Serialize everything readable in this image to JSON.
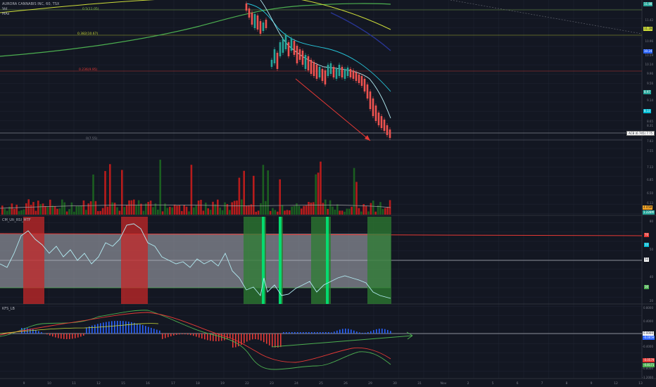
{
  "header": {
    "symbol": "AURORA CANNABIS INC, 60, TSX",
    "line2": "Vol",
    "line3": "MAs"
  },
  "fib_levels": [
    {
      "label": "0.5(11.05)",
      "color": "#8bc34a"
    },
    {
      "label": "0.382(10.67)",
      "color": "#cddc39"
    },
    {
      "label": "0.236(9.95)",
      "color": "#e53935"
    },
    {
      "label": "0(7.55)",
      "color": "#787b86"
    }
  ],
  "price_line_label": "ACB (6.745) 7.75",
  "right_axis_price": [
    "11.42",
    "10.96",
    "10.59",
    "10.14",
    "9.96",
    "9.56",
    "9.14",
    "8.65",
    "8.31",
    "7.83",
    "7.55",
    "7.13",
    "6.85",
    "6.50",
    "6.13"
  ],
  "price_tags": [
    {
      "text": "11.88",
      "color": "#26a69a"
    },
    {
      "text": "11.28",
      "color": "#cddc39"
    },
    {
      "text": "10.24",
      "color": "#2962ff"
    },
    {
      "text": "8.97",
      "color": "#26a69a"
    },
    {
      "text": "8.13",
      "color": "#00bcd4"
    }
  ],
  "volume_tags": [
    {
      "text": "4.05M",
      "color": "#f9a825"
    },
    {
      "text": "1.228M",
      "color": "#26a69a"
    }
  ],
  "rsi": {
    "label": "CM_Ult_RSI_MTF",
    "axis": [
      "80",
      "70",
      "50",
      "40",
      "30",
      "20"
    ],
    "tags": [
      {
        "text": "70",
        "color": "#e53935"
      },
      {
        "text": "50",
        "color": "#787b86"
      },
      {
        "text": "30",
        "color": "#4caf50"
      },
      {
        "text": "33",
        "color": "#00bcd4"
      }
    ]
  },
  "osc": {
    "label": "KFS_LB",
    "axis": [
      "0.8000",
      "0.4000",
      "0.0000",
      "-0.4000",
      "-0.8000",
      "-1.2000"
    ],
    "tags": [
      {
        "text": "0.0000",
        "color": "#787b86"
      },
      {
        "text": "-0.0059",
        "color": "#2962ff"
      },
      {
        "text": "-0.0579",
        "color": "#e53935"
      },
      {
        "text": "-0.8171",
        "color": "#4caf50"
      }
    ]
  },
  "time_axis": [
    "9",
    "10",
    "11",
    "12",
    "15",
    "16",
    "17",
    "18",
    "19",
    "22",
    "23",
    "24",
    "25",
    "26",
    "29",
    "30",
    "31",
    "Nov",
    "2",
    "5",
    "6",
    "7",
    "8",
    "9",
    "12",
    "13"
  ],
  "colors": {
    "background": "#131722",
    "up": "#26a69a",
    "down": "#ef5350",
    "ma_green": "#4caf50",
    "ma_yellow": "#cddc39",
    "ma_blue": "#1a237e",
    "arrow_red": "#e53935",
    "arrow_green": "#4caf50"
  }
}
